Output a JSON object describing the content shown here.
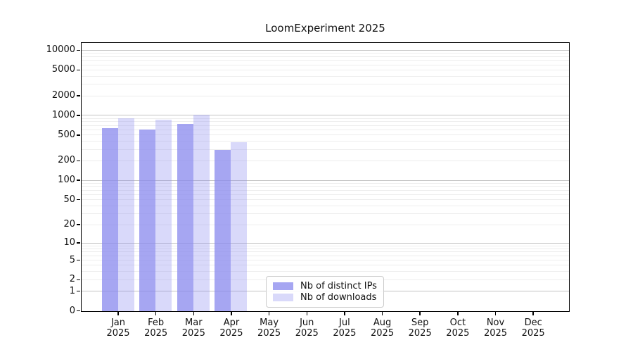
{
  "title": "LoomExperiment 2025",
  "chart_data": {
    "type": "bar",
    "title": "LoomExperiment 2025",
    "categories": [
      "Jan 2025",
      "Feb 2025",
      "Mar 2025",
      "Apr 2025",
      "May 2025",
      "Jun 2025",
      "Jul 2025",
      "Aug 2025",
      "Sep 2025",
      "Oct 2025",
      "Nov 2025",
      "Dec 2025"
    ],
    "series": [
      {
        "name": "Nb of distinct IPs",
        "color": "rgba(136,136,238,0.75)",
        "values": [
          640,
          610,
          745,
          295,
          null,
          null,
          null,
          null,
          null,
          null,
          null,
          null
        ]
      },
      {
        "name": "Nb of downloads",
        "color": "rgba(136,136,238,0.32)",
        "values": [
          910,
          865,
          1050,
          390,
          null,
          null,
          null,
          null,
          null,
          null,
          null,
          null
        ]
      }
    ],
    "yscale": "log1p",
    "ylim": [
      0,
      13000
    ],
    "yticks": [
      0,
      1,
      2,
      5,
      10,
      20,
      50,
      100,
      200,
      500,
      1000,
      2000,
      5000,
      10000
    ],
    "major_grid_values": [
      1,
      10,
      100,
      1000,
      10000
    ],
    "grid": "horizontal, major + minor",
    "legend_position": "inside bottom-center",
    "colors": {
      "major_grid": "#c3c3c3",
      "minor_grid": "#ededed",
      "spine": "#000000",
      "legend_border": "#cbcbcb",
      "text": "#111111"
    }
  }
}
